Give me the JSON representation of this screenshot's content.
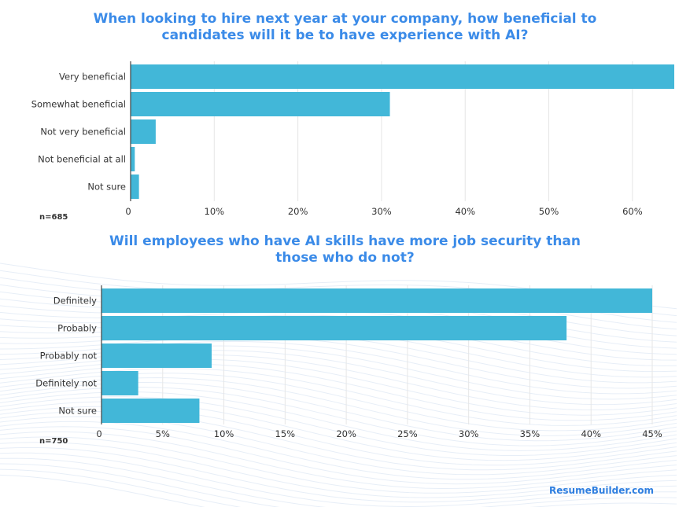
{
  "colors": {
    "bar": "#42b7d8",
    "title": "#3b8be8",
    "grid": "#e6e6e6",
    "axis": "#444444",
    "brand": "#2f7fe0"
  },
  "brand": "ResumeBuilder.com",
  "chart_data": [
    {
      "type": "bar",
      "orientation": "horizontal",
      "title": "When looking to hire next year at your company, how beneficial to candidates will it be to have experience with AI?",
      "note": "n=685",
      "categories": [
        "Very beneficial",
        "Somewhat beneficial",
        "Not very beneficial",
        "Not beneficial at all",
        "Not sure"
      ],
      "values": [
        65,
        31,
        3,
        0.5,
        1
      ],
      "ticks": [
        "0",
        "10%",
        "20%",
        "30%",
        "40%",
        "50%",
        "60%"
      ],
      "xlim": [
        0,
        65
      ],
      "grid": true
    },
    {
      "type": "bar",
      "orientation": "horizontal",
      "title": "Will employees who have AI skills have more job security than those who do not?",
      "note": "n=750",
      "categories": [
        "Definitely",
        "Probably",
        "Probably not",
        "Definitely not",
        "Not sure"
      ],
      "values": [
        45,
        38,
        9,
        3,
        8
      ],
      "ticks": [
        "0",
        "5%",
        "10%",
        "15%",
        "20%",
        "25%",
        "30%",
        "35%",
        "40%",
        "45%"
      ],
      "xlim": [
        0,
        45
      ],
      "grid": true
    }
  ]
}
